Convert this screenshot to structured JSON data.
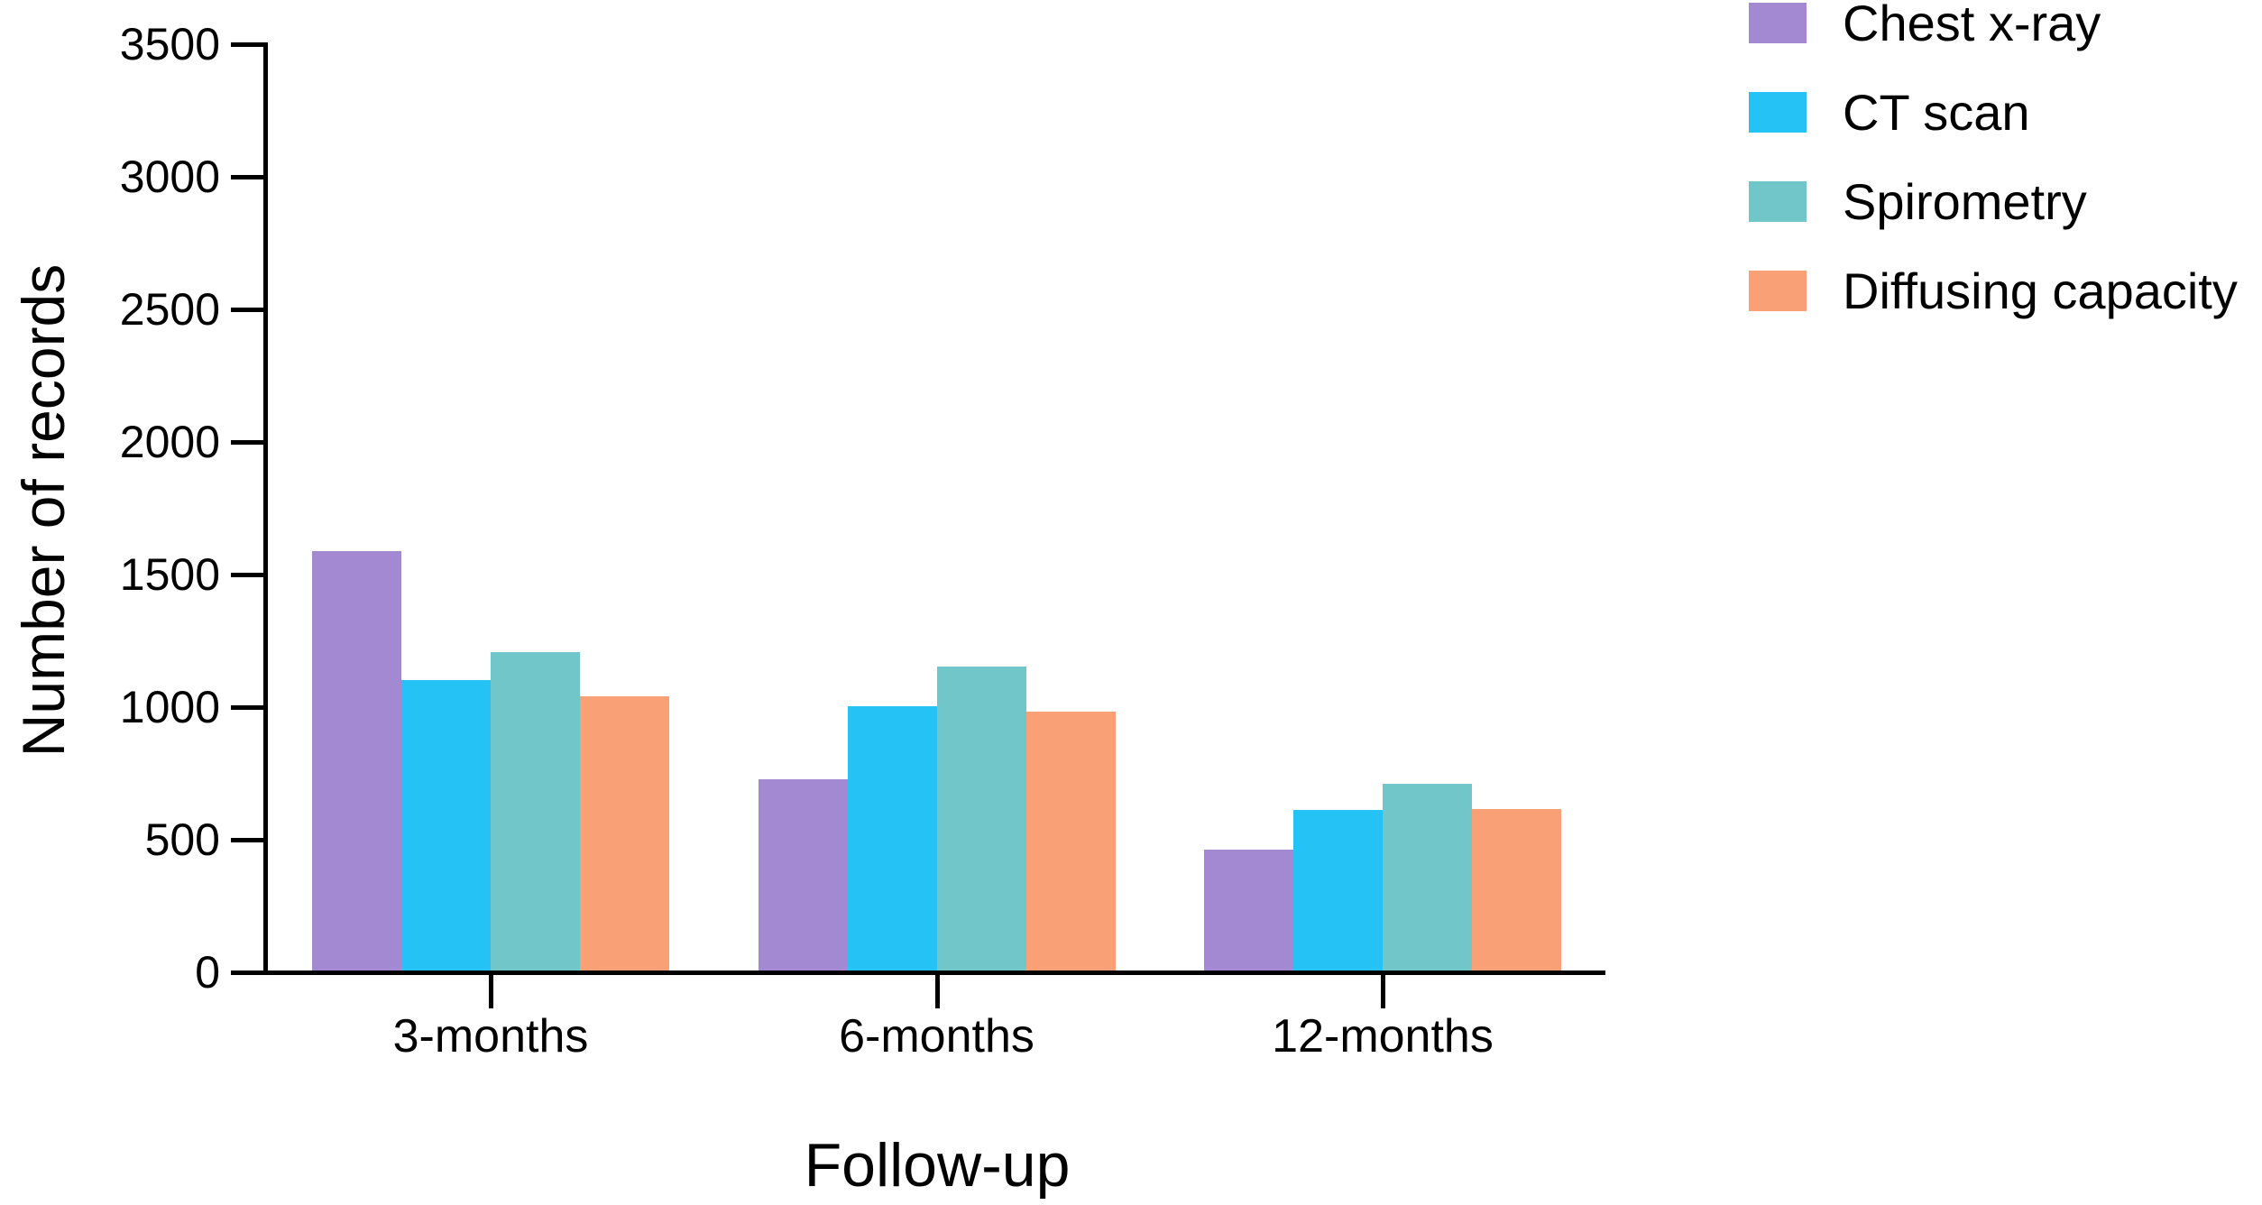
{
  "chart_data": {
    "type": "bar",
    "title": "",
    "xlabel": "Follow-up",
    "ylabel": "Number of records",
    "categories": [
      "3-months",
      "6-months",
      "12-months"
    ],
    "series": [
      {
        "name": "Chest x-ray",
        "color": "#a289d1",
        "values": [
          1580,
          720,
          455
        ]
      },
      {
        "name": "CT scan",
        "color": "#25c3f5",
        "values": [
          1095,
          995,
          605
        ]
      },
      {
        "name": "Spirometry",
        "color": "#70c6c9",
        "values": [
          1200,
          1145,
          705
        ]
      },
      {
        "name": "Diffusing capacity",
        "color": "#f9a077",
        "values": [
          1035,
          975,
          610
        ]
      }
    ],
    "ylim": [
      0,
      3500
    ],
    "yticks": [
      0,
      500,
      1000,
      1500,
      2000,
      2500,
      3000,
      3500
    ],
    "grid": false,
    "legend_position": "top-right",
    "axis_color": "#000000",
    "background": "#ffffff"
  }
}
